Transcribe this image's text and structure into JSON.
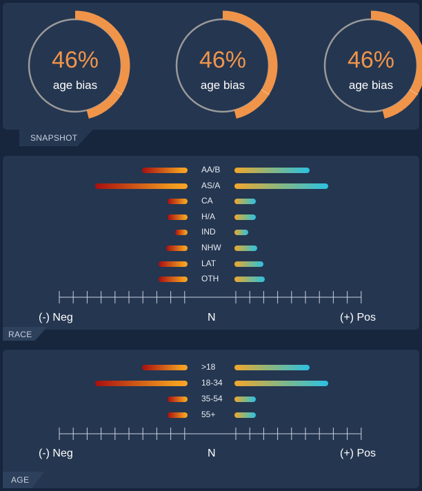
{
  "snapshot": {
    "tab_label": "SNAPSHOT",
    "gauges": [
      {
        "value": "46%",
        "label": "age bias",
        "fraction": 0.46
      },
      {
        "value": "46%",
        "label": "age bias",
        "fraction": 0.46
      },
      {
        "value": "46%",
        "label": "age bias",
        "fraction": 0.46
      }
    ]
  },
  "race": {
    "tab_label": "RACE",
    "categories": [
      {
        "label": "AA/B",
        "neg": 0.36,
        "pos": 0.59
      },
      {
        "label": "AS/A",
        "neg": 0.73,
        "pos": 0.74
      },
      {
        "label": "CA",
        "neg": 0.16,
        "pos": 0.17
      },
      {
        "label": "H/A",
        "neg": 0.16,
        "pos": 0.17
      },
      {
        "label": "IND",
        "neg": 0.1,
        "pos": 0.11
      },
      {
        "label": "NHW",
        "neg": 0.17,
        "pos": 0.18
      },
      {
        "label": "LAT",
        "neg": 0.23,
        "pos": 0.23
      },
      {
        "label": "OTH",
        "neg": 0.23,
        "pos": 0.24
      }
    ],
    "axis": {
      "neg_label": "(-) Neg",
      "mid_label": "N",
      "pos_label": "(+) Pos"
    }
  },
  "age": {
    "tab_label": "AGE",
    "categories": [
      {
        "label": ">18",
        "neg": 0.36,
        "pos": 0.59
      },
      {
        "label": "18-34",
        "neg": 0.73,
        "pos": 0.74
      },
      {
        "label": "35-54",
        "neg": 0.16,
        "pos": 0.17
      },
      {
        "label": "55+",
        "neg": 0.16,
        "pos": 0.17
      }
    ],
    "axis": {
      "neg_label": "(-) Neg",
      "mid_label": "N",
      "pos_label": "(+) Pos"
    }
  },
  "colors": {
    "accent": "#f0944a",
    "ring": "#9a9a9a",
    "panel": "#253650",
    "background": "#17253d",
    "axis": "#c9d2df"
  }
}
